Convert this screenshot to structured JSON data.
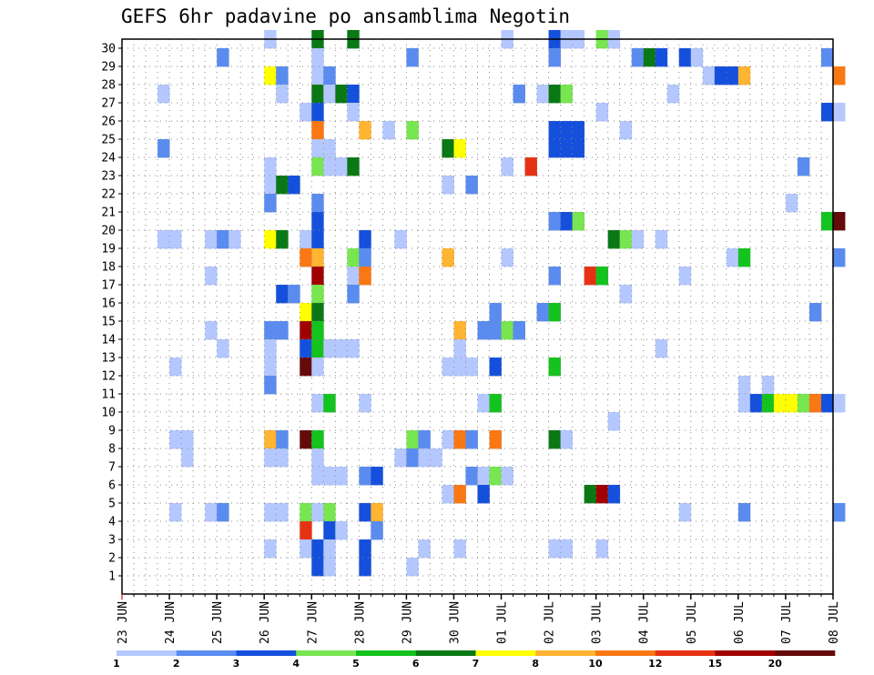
{
  "chart_data": {
    "type": "heatmap",
    "title": "GEFS 6hr padavine po ansamblima Negotin",
    "xlabel": "",
    "ylabel": "",
    "x_tick_labels": [
      "23 JUN",
      "24 JUN",
      "25 JUN",
      "26 JUN",
      "27 JUN",
      "28 JUN",
      "29 JUN",
      "30 JUN",
      "01 JUL",
      "02 JUL",
      "03 JUL",
      "04 JUL",
      "05 JUL",
      "06 JUL",
      "07 JUL",
      "08 JUL"
    ],
    "y_tick_labels": [
      "1",
      "2",
      "3",
      "4",
      "5",
      "6",
      "7",
      "8",
      "9",
      "10",
      "11",
      "12",
      "13",
      "14",
      "15",
      "16",
      "17",
      "18",
      "19",
      "20",
      "21",
      "22",
      "23",
      "24",
      "25",
      "26",
      "27",
      "28",
      "29",
      "30"
    ],
    "steps_per_day": 4,
    "members": 30,
    "grid": true,
    "legend_position": "bottom",
    "colorbar": {
      "labels": [
        "1",
        "2",
        "3",
        "4",
        "5",
        "6",
        "7",
        "8",
        "10",
        "12",
        "15",
        "20"
      ],
      "colors": [
        "#b4c8ff",
        "#5a8cf0",
        "#1450dc",
        "#78e650",
        "#14c31e",
        "#0a7814",
        "#ffff00",
        "#ffb432",
        "#fa7814",
        "#e63214",
        "#a00000",
        "#640a0a"
      ]
    },
    "cells": [
      {
        "m": 30,
        "t": 12,
        "c": 1
      },
      {
        "m": 30,
        "t": 16,
        "c": 6
      },
      {
        "m": 30,
        "t": 19,
        "c": 6
      },
      {
        "m": 30,
        "t": 32,
        "c": 1
      },
      {
        "m": 30,
        "t": 36,
        "c": 3
      },
      {
        "m": 30,
        "t": 37,
        "c": 1
      },
      {
        "m": 30,
        "t": 38,
        "c": 1
      },
      {
        "m": 30,
        "t": 40,
        "c": 4
      },
      {
        "m": 30,
        "t": 41,
        "c": 1
      },
      {
        "m": 29,
        "t": 8,
        "c": 2
      },
      {
        "m": 29,
        "t": 16,
        "c": 1
      },
      {
        "m": 29,
        "t": 24,
        "c": 2
      },
      {
        "m": 29,
        "t": 36,
        "c": 2
      },
      {
        "m": 29,
        "t": 43,
        "c": 2
      },
      {
        "m": 29,
        "t": 44,
        "c": 6
      },
      {
        "m": 29,
        "t": 45,
        "c": 3
      },
      {
        "m": 29,
        "t": 47,
        "c": 3
      },
      {
        "m": 29,
        "t": 48,
        "c": 1
      },
      {
        "m": 29,
        "t": 59,
        "c": 2
      },
      {
        "m": 28,
        "t": 12,
        "c": 7
      },
      {
        "m": 28,
        "t": 13,
        "c": 2
      },
      {
        "m": 28,
        "t": 16,
        "c": 1
      },
      {
        "m": 28,
        "t": 17,
        "c": 2
      },
      {
        "m": 28,
        "t": 49,
        "c": 1
      },
      {
        "m": 28,
        "t": 50,
        "c": 3
      },
      {
        "m": 28,
        "t": 51,
        "c": 3
      },
      {
        "m": 28,
        "t": 52,
        "c": 8
      },
      {
        "m": 28,
        "t": 60,
        "c": 9
      },
      {
        "m": 27,
        "t": 3,
        "c": 1
      },
      {
        "m": 27,
        "t": 13,
        "c": 1
      },
      {
        "m": 27,
        "t": 16,
        "c": 6
      },
      {
        "m": 27,
        "t": 17,
        "c": 1
      },
      {
        "m": 27,
        "t": 18,
        "c": 6
      },
      {
        "m": 27,
        "t": 19,
        "c": 3
      },
      {
        "m": 27,
        "t": 33,
        "c": 2
      },
      {
        "m": 27,
        "t": 35,
        "c": 1
      },
      {
        "m": 27,
        "t": 36,
        "c": 6
      },
      {
        "m": 27,
        "t": 37,
        "c": 4
      },
      {
        "m": 27,
        "t": 46,
        "c": 1
      },
      {
        "m": 26,
        "t": 15,
        "c": 1
      },
      {
        "m": 26,
        "t": 16,
        "c": 3
      },
      {
        "m": 26,
        "t": 19,
        "c": 1
      },
      {
        "m": 26,
        "t": 40,
        "c": 1
      },
      {
        "m": 26,
        "t": 59,
        "c": 3
      },
      {
        "m": 26,
        "t": 60,
        "c": 1
      },
      {
        "m": 25,
        "t": 16,
        "c": 9
      },
      {
        "m": 25,
        "t": 20,
        "c": 8
      },
      {
        "m": 25,
        "t": 22,
        "c": 1
      },
      {
        "m": 25,
        "t": 24,
        "c": 4
      },
      {
        "m": 25,
        "t": 36,
        "c": 3
      },
      {
        "m": 25,
        "t": 37,
        "c": 3
      },
      {
        "m": 25,
        "t": 38,
        "c": 3
      },
      {
        "m": 25,
        "t": 42,
        "c": 1
      },
      {
        "m": 24,
        "t": 3,
        "c": 2
      },
      {
        "m": 24,
        "t": 16,
        "c": 1
      },
      {
        "m": 24,
        "t": 17,
        "c": 1
      },
      {
        "m": 24,
        "t": 27,
        "c": 6
      },
      {
        "m": 24,
        "t": 28,
        "c": 7
      },
      {
        "m": 24,
        "t": 36,
        "c": 3
      },
      {
        "m": 24,
        "t": 37,
        "c": 3
      },
      {
        "m": 24,
        "t": 38,
        "c": 3
      },
      {
        "m": 23,
        "t": 12,
        "c": 1
      },
      {
        "m": 23,
        "t": 16,
        "c": 4
      },
      {
        "m": 23,
        "t": 17,
        "c": 1
      },
      {
        "m": 23,
        "t": 18,
        "c": 1
      },
      {
        "m": 23,
        "t": 19,
        "c": 6
      },
      {
        "m": 23,
        "t": 32,
        "c": 1
      },
      {
        "m": 23,
        "t": 34,
        "c": 10
      },
      {
        "m": 23,
        "t": 57,
        "c": 2
      },
      {
        "m": 22,
        "t": 12,
        "c": 1
      },
      {
        "m": 22,
        "t": 13,
        "c": 6
      },
      {
        "m": 22,
        "t": 14,
        "c": 3
      },
      {
        "m": 22,
        "t": 27,
        "c": 1
      },
      {
        "m": 22,
        "t": 29,
        "c": 2
      },
      {
        "m": 21,
        "t": 12,
        "c": 2
      },
      {
        "m": 21,
        "t": 16,
        "c": 2
      },
      {
        "m": 21,
        "t": 56,
        "c": 1
      },
      {
        "m": 20,
        "t": 16,
        "c": 3
      },
      {
        "m": 20,
        "t": 36,
        "c": 2
      },
      {
        "m": 20,
        "t": 37,
        "c": 3
      },
      {
        "m": 20,
        "t": 38,
        "c": 4
      },
      {
        "m": 20,
        "t": 59,
        "c": 5
      },
      {
        "m": 20,
        "t": 60,
        "c": 12
      },
      {
        "m": 19,
        "t": 3,
        "c": 1
      },
      {
        "m": 19,
        "t": 4,
        "c": 1
      },
      {
        "m": 19,
        "t": 7,
        "c": 1
      },
      {
        "m": 19,
        "t": 8,
        "c": 2
      },
      {
        "m": 19,
        "t": 9,
        "c": 1
      },
      {
        "m": 19,
        "t": 12,
        "c": 7
      },
      {
        "m": 19,
        "t": 13,
        "c": 6
      },
      {
        "m": 19,
        "t": 15,
        "c": 1
      },
      {
        "m": 19,
        "t": 16,
        "c": 3
      },
      {
        "m": 19,
        "t": 20,
        "c": 3
      },
      {
        "m": 19,
        "t": 23,
        "c": 1
      },
      {
        "m": 19,
        "t": 41,
        "c": 6
      },
      {
        "m": 19,
        "t": 42,
        "c": 4
      },
      {
        "m": 19,
        "t": 43,
        "c": 1
      },
      {
        "m": 19,
        "t": 45,
        "c": 1
      },
      {
        "m": 18,
        "t": 15,
        "c": 9
      },
      {
        "m": 18,
        "t": 16,
        "c": 8
      },
      {
        "m": 18,
        "t": 19,
        "c": 4
      },
      {
        "m": 18,
        "t": 20,
        "c": 2
      },
      {
        "m": 18,
        "t": 27,
        "c": 8
      },
      {
        "m": 18,
        "t": 32,
        "c": 1
      },
      {
        "m": 18,
        "t": 51,
        "c": 1
      },
      {
        "m": 18,
        "t": 52,
        "c": 5
      },
      {
        "m": 18,
        "t": 60,
        "c": 2
      },
      {
        "m": 17,
        "t": 7,
        "c": 1
      },
      {
        "m": 17,
        "t": 16,
        "c": 11
      },
      {
        "m": 17,
        "t": 19,
        "c": 1
      },
      {
        "m": 17,
        "t": 20,
        "c": 9
      },
      {
        "m": 17,
        "t": 36,
        "c": 2
      },
      {
        "m": 17,
        "t": 39,
        "c": 10
      },
      {
        "m": 17,
        "t": 40,
        "c": 5
      },
      {
        "m": 17,
        "t": 47,
        "c": 1
      },
      {
        "m": 16,
        "t": 13,
        "c": 3
      },
      {
        "m": 16,
        "t": 14,
        "c": 2
      },
      {
        "m": 16,
        "t": 16,
        "c": 4
      },
      {
        "m": 16,
        "t": 19,
        "c": 2
      },
      {
        "m": 16,
        "t": 42,
        "c": 1
      },
      {
        "m": 15,
        "t": 15,
        "c": 7
      },
      {
        "m": 15,
        "t": 16,
        "c": 6
      },
      {
        "m": 15,
        "t": 31,
        "c": 2
      },
      {
        "m": 15,
        "t": 35,
        "c": 2
      },
      {
        "m": 15,
        "t": 36,
        "c": 5
      },
      {
        "m": 15,
        "t": 58,
        "c": 2
      },
      {
        "m": 14,
        "t": 7,
        "c": 1
      },
      {
        "m": 14,
        "t": 12,
        "c": 2
      },
      {
        "m": 14,
        "t": 13,
        "c": 2
      },
      {
        "m": 14,
        "t": 15,
        "c": 11
      },
      {
        "m": 14,
        "t": 16,
        "c": 5
      },
      {
        "m": 14,
        "t": 28,
        "c": 8
      },
      {
        "m": 14,
        "t": 30,
        "c": 2
      },
      {
        "m": 14,
        "t": 31,
        "c": 2
      },
      {
        "m": 14,
        "t": 32,
        "c": 4
      },
      {
        "m": 14,
        "t": 33,
        "c": 2
      },
      {
        "m": 13,
        "t": 8,
        "c": 1
      },
      {
        "m": 13,
        "t": 12,
        "c": 1
      },
      {
        "m": 13,
        "t": 15,
        "c": 3
      },
      {
        "m": 13,
        "t": 16,
        "c": 5
      },
      {
        "m": 13,
        "t": 17,
        "c": 1
      },
      {
        "m": 13,
        "t": 18,
        "c": 1
      },
      {
        "m": 13,
        "t": 19,
        "c": 1
      },
      {
        "m": 13,
        "t": 28,
        "c": 1
      },
      {
        "m": 13,
        "t": 45,
        "c": 1
      },
      {
        "m": 12,
        "t": 4,
        "c": 1
      },
      {
        "m": 12,
        "t": 12,
        "c": 1
      },
      {
        "m": 12,
        "t": 15,
        "c": 12
      },
      {
        "m": 12,
        "t": 16,
        "c": 1
      },
      {
        "m": 12,
        "t": 27,
        "c": 1
      },
      {
        "m": 12,
        "t": 28,
        "c": 1
      },
      {
        "m": 12,
        "t": 29,
        "c": 1
      },
      {
        "m": 12,
        "t": 31,
        "c": 3
      },
      {
        "m": 12,
        "t": 36,
        "c": 5
      },
      {
        "m": 11,
        "t": 12,
        "c": 2
      },
      {
        "m": 11,
        "t": 52,
        "c": 1
      },
      {
        "m": 11,
        "t": 54,
        "c": 1
      },
      {
        "m": 10,
        "t": 16,
        "c": 1
      },
      {
        "m": 10,
        "t": 17,
        "c": 5
      },
      {
        "m": 10,
        "t": 20,
        "c": 1
      },
      {
        "m": 10,
        "t": 30,
        "c": 1
      },
      {
        "m": 10,
        "t": 31,
        "c": 5
      },
      {
        "m": 10,
        "t": 52,
        "c": 1
      },
      {
        "m": 10,
        "t": 53,
        "c": 3
      },
      {
        "m": 10,
        "t": 54,
        "c": 5
      },
      {
        "m": 10,
        "t": 55,
        "c": 7
      },
      {
        "m": 10,
        "t": 56,
        "c": 7
      },
      {
        "m": 10,
        "t": 57,
        "c": 4
      },
      {
        "m": 10,
        "t": 58,
        "c": 9
      },
      {
        "m": 10,
        "t": 59,
        "c": 3
      },
      {
        "m": 10,
        "t": 60,
        "c": 1
      },
      {
        "m": 9,
        "t": 41,
        "c": 1
      },
      {
        "m": 8,
        "t": 4,
        "c": 1
      },
      {
        "m": 8,
        "t": 5,
        "c": 1
      },
      {
        "m": 8,
        "t": 12,
        "c": 8
      },
      {
        "m": 8,
        "t": 13,
        "c": 2
      },
      {
        "m": 8,
        "t": 15,
        "c": 12
      },
      {
        "m": 8,
        "t": 16,
        "c": 5
      },
      {
        "m": 8,
        "t": 24,
        "c": 4
      },
      {
        "m": 8,
        "t": 25,
        "c": 2
      },
      {
        "m": 8,
        "t": 27,
        "c": 1
      },
      {
        "m": 8,
        "t": 28,
        "c": 9
      },
      {
        "m": 8,
        "t": 29,
        "c": 2
      },
      {
        "m": 8,
        "t": 31,
        "c": 9
      },
      {
        "m": 8,
        "t": 36,
        "c": 6
      },
      {
        "m": 8,
        "t": 37,
        "c": 1
      },
      {
        "m": 7,
        "t": 5,
        "c": 1
      },
      {
        "m": 7,
        "t": 12,
        "c": 1
      },
      {
        "m": 7,
        "t": 13,
        "c": 1
      },
      {
        "m": 7,
        "t": 16,
        "c": 1
      },
      {
        "m": 7,
        "t": 23,
        "c": 1
      },
      {
        "m": 7,
        "t": 24,
        "c": 2
      },
      {
        "m": 7,
        "t": 25,
        "c": 1
      },
      {
        "m": 7,
        "t": 26,
        "c": 1
      },
      {
        "m": 6,
        "t": 16,
        "c": 1
      },
      {
        "m": 6,
        "t": 17,
        "c": 1
      },
      {
        "m": 6,
        "t": 18,
        "c": 1
      },
      {
        "m": 6,
        "t": 20,
        "c": 2
      },
      {
        "m": 6,
        "t": 21,
        "c": 3
      },
      {
        "m": 6,
        "t": 29,
        "c": 2
      },
      {
        "m": 6,
        "t": 30,
        "c": 1
      },
      {
        "m": 6,
        "t": 31,
        "c": 4
      },
      {
        "m": 6,
        "t": 32,
        "c": 1
      },
      {
        "m": 5,
        "t": 27,
        "c": 1
      },
      {
        "m": 5,
        "t": 28,
        "c": 9
      },
      {
        "m": 5,
        "t": 30,
        "c": 3
      },
      {
        "m": 5,
        "t": 39,
        "c": 6
      },
      {
        "m": 5,
        "t": 40,
        "c": 11
      },
      {
        "m": 5,
        "t": 41,
        "c": 3
      },
      {
        "m": 4,
        "t": 4,
        "c": 1
      },
      {
        "m": 4,
        "t": 7,
        "c": 1
      },
      {
        "m": 4,
        "t": 8,
        "c": 2
      },
      {
        "m": 4,
        "t": 12,
        "c": 1
      },
      {
        "m": 4,
        "t": 13,
        "c": 1
      },
      {
        "m": 4,
        "t": 15,
        "c": 4
      },
      {
        "m": 4,
        "t": 16,
        "c": 1
      },
      {
        "m": 4,
        "t": 17,
        "c": 4
      },
      {
        "m": 4,
        "t": 20,
        "c": 3
      },
      {
        "m": 4,
        "t": 21,
        "c": 8
      },
      {
        "m": 4,
        "t": 47,
        "c": 1
      },
      {
        "m": 4,
        "t": 52,
        "c": 2
      },
      {
        "m": 4,
        "t": 60,
        "c": 2
      },
      {
        "m": 3,
        "t": 15,
        "c": 10
      },
      {
        "m": 3,
        "t": 17,
        "c": 3
      },
      {
        "m": 3,
        "t": 18,
        "c": 1
      },
      {
        "m": 3,
        "t": 21,
        "c": 2
      },
      {
        "m": 2,
        "t": 12,
        "c": 1
      },
      {
        "m": 2,
        "t": 15,
        "c": 1
      },
      {
        "m": 2,
        "t": 16,
        "c": 3
      },
      {
        "m": 2,
        "t": 17,
        "c": 1
      },
      {
        "m": 2,
        "t": 20,
        "c": 3
      },
      {
        "m": 2,
        "t": 25,
        "c": 1
      },
      {
        "m": 2,
        "t": 28,
        "c": 1
      },
      {
        "m": 2,
        "t": 36,
        "c": 1
      },
      {
        "m": 2,
        "t": 37,
        "c": 1
      },
      {
        "m": 2,
        "t": 40,
        "c": 1
      },
      {
        "m": 1,
        "t": 16,
        "c": 3
      },
      {
        "m": 1,
        "t": 17,
        "c": 1
      },
      {
        "m": 1,
        "t": 20,
        "c": 3
      },
      {
        "m": 1,
        "t": 24,
        "c": 1
      }
    ]
  }
}
